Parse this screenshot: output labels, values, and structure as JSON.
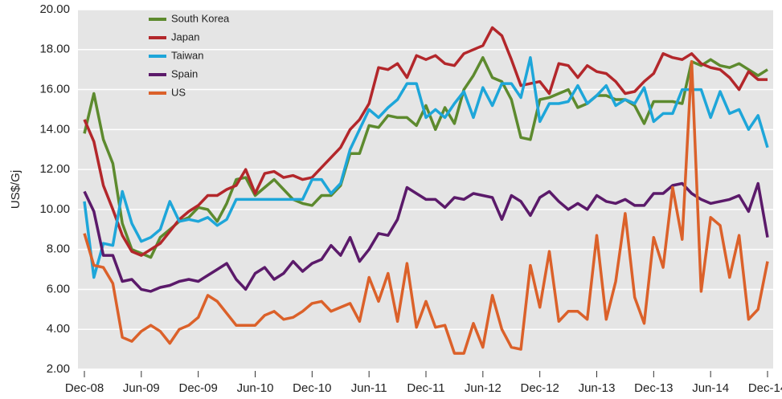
{
  "chart_data": {
    "type": "line",
    "y_label": "US$/Gj",
    "categories": [
      "Dec-08",
      null,
      null,
      null,
      null,
      null,
      "Jun-09",
      null,
      null,
      null,
      null,
      null,
      "Dec-09",
      null,
      null,
      null,
      null,
      null,
      "Jun-10",
      null,
      null,
      null,
      null,
      null,
      "Dec-10",
      null,
      null,
      null,
      null,
      null,
      "Jun-11",
      null,
      null,
      null,
      null,
      null,
      "Dec-11",
      null,
      null,
      null,
      null,
      null,
      "Jun-12",
      null,
      null,
      null,
      null,
      null,
      "Dec-12",
      null,
      null,
      null,
      null,
      null,
      "Jun-13",
      null,
      null,
      null,
      null,
      null,
      "Dec-13",
      null,
      null,
      null,
      null,
      null,
      "Jun-14",
      null,
      null,
      null,
      null,
      null,
      "Dec-14"
    ],
    "series": [
      {
        "name": "South Korea",
        "color": "#5d8a2e",
        "values": [
          13.8,
          15.8,
          13.5,
          12.3,
          9.3,
          8.0,
          7.8,
          7.6,
          8.6,
          9.0,
          9.4,
          9.6,
          10.1,
          10.0,
          9.4,
          10.3,
          11.5,
          11.6,
          10.7,
          11.1,
          11.5,
          11.0,
          10.5,
          10.3,
          10.2,
          10.7,
          10.7,
          11.2,
          12.8,
          12.8,
          14.2,
          14.1,
          14.7,
          14.6,
          14.6,
          14.2,
          15.2,
          14.0,
          15.1,
          14.3,
          16.0,
          16.7,
          17.6,
          16.6,
          16.4,
          15.5,
          13.6,
          13.5,
          15.5,
          15.6,
          15.8,
          16.0,
          15.1,
          15.3,
          15.7,
          15.7,
          15.5,
          15.5,
          15.2,
          14.3,
          15.4,
          15.4,
          15.4,
          15.3,
          17.4,
          17.2,
          17.5,
          17.2,
          17.1,
          17.3,
          17.0,
          16.7,
          17.0
        ]
      },
      {
        "name": "Japan",
        "color": "#b3272b",
        "values": [
          14.5,
          13.4,
          11.2,
          10.0,
          8.7,
          7.9,
          7.7,
          8.0,
          8.3,
          8.9,
          9.5,
          9.9,
          10.2,
          10.7,
          10.7,
          11.0,
          11.2,
          12.0,
          10.8,
          11.8,
          11.9,
          11.6,
          11.7,
          11.5,
          11.6,
          12.1,
          12.6,
          13.1,
          14.0,
          14.5,
          15.3,
          17.1,
          17.0,
          17.3,
          16.6,
          17.7,
          17.5,
          17.7,
          17.3,
          17.2,
          17.8,
          18.0,
          18.2,
          19.1,
          18.7,
          17.5,
          16.2,
          16.3,
          16.4,
          15.8,
          17.3,
          17.2,
          16.6,
          17.2,
          16.9,
          16.8,
          16.4,
          15.8,
          15.9,
          16.4,
          16.8,
          17.8,
          17.6,
          17.5,
          17.8,
          17.3,
          17.1,
          17.0,
          16.6,
          16.0,
          16.9,
          16.5,
          16.5
        ]
      },
      {
        "name": "Taiwan",
        "color": "#1ea6d9",
        "values": [
          10.4,
          6.6,
          8.3,
          8.2,
          10.9,
          9.3,
          8.4,
          8.6,
          9.0,
          10.4,
          9.4,
          9.5,
          9.4,
          9.6,
          9.2,
          9.5,
          10.5,
          10.5,
          10.5,
          10.5,
          10.5,
          10.5,
          10.5,
          10.5,
          11.5,
          11.5,
          10.8,
          11.3,
          13.0,
          14.0,
          15.0,
          14.6,
          15.1,
          15.5,
          16.3,
          16.3,
          14.6,
          15.0,
          14.6,
          15.3,
          15.9,
          14.6,
          16.1,
          15.2,
          16.3,
          16.3,
          15.6,
          17.6,
          14.4,
          15.3,
          15.3,
          15.4,
          16.2,
          15.3,
          15.7,
          16.2,
          15.2,
          15.5,
          15.3,
          16.1,
          14.4,
          14.8,
          14.8,
          16.0,
          16.0,
          16.0,
          14.6,
          15.9,
          14.8,
          15.0,
          14.0,
          14.7,
          13.1
        ]
      },
      {
        "name": "Spain",
        "color": "#5b1a6a",
        "values": [
          10.9,
          9.9,
          7.7,
          7.7,
          6.4,
          6.5,
          6.0,
          5.9,
          6.1,
          6.2,
          6.4,
          6.5,
          6.4,
          6.7,
          7.0,
          7.3,
          6.5,
          6.0,
          6.8,
          7.1,
          6.5,
          6.8,
          7.4,
          6.9,
          7.3,
          7.5,
          8.2,
          7.7,
          8.6,
          7.4,
          8.0,
          8.8,
          8.7,
          9.5,
          11.1,
          10.8,
          10.5,
          10.5,
          10.1,
          10.6,
          10.5,
          10.8,
          10.7,
          10.6,
          9.5,
          10.7,
          10.4,
          9.7,
          10.6,
          10.9,
          10.4,
          10.0,
          10.3,
          10.0,
          10.7,
          10.4,
          10.3,
          10.5,
          10.2,
          10.2,
          10.8,
          10.8,
          11.2,
          11.3,
          10.8,
          10.5,
          10.3,
          10.4,
          10.5,
          10.7,
          9.9,
          11.3,
          8.6
        ]
      },
      {
        "name": "US",
        "color": "#db612a",
        "values": [
          8.8,
          7.2,
          7.1,
          6.3,
          3.6,
          3.4,
          3.9,
          4.2,
          3.9,
          3.3,
          4.0,
          4.2,
          4.6,
          5.7,
          5.4,
          4.8,
          4.2,
          4.2,
          4.2,
          4.7,
          4.9,
          4.5,
          4.6,
          4.9,
          5.3,
          5.4,
          4.9,
          5.1,
          5.3,
          4.4,
          6.6,
          5.4,
          6.8,
          4.4,
          7.3,
          4.1,
          5.4,
          4.1,
          4.2,
          2.8,
          2.8,
          4.3,
          3.1,
          5.7,
          4.0,
          3.1,
          3.0,
          7.2,
          5.1,
          7.9,
          4.4,
          4.9,
          4.9,
          4.5,
          8.7,
          4.5,
          6.4,
          9.8,
          5.6,
          4.3,
          8.6,
          7.1,
          11.1,
          8.5,
          17.4,
          5.9,
          9.6,
          9.2,
          6.6,
          8.7,
          4.5,
          5.0,
          7.4
        ]
      }
    ],
    "ylim": [
      2,
      20
    ],
    "yticks": [
      {
        "value": 2,
        "label": "2.00"
      },
      {
        "value": 4,
        "label": "4.00"
      },
      {
        "value": 6,
        "label": "6.00"
      },
      {
        "value": 8,
        "label": "8.00"
      },
      {
        "value": 10,
        "label": "10.00"
      },
      {
        "value": 12,
        "label": "12.00"
      },
      {
        "value": 14,
        "label": "14.00"
      },
      {
        "value": 16,
        "label": "16.00"
      },
      {
        "value": 18,
        "label": "18.00"
      },
      {
        "value": 20,
        "label": "20.00"
      }
    ],
    "grid": true,
    "legend": "top-left"
  }
}
